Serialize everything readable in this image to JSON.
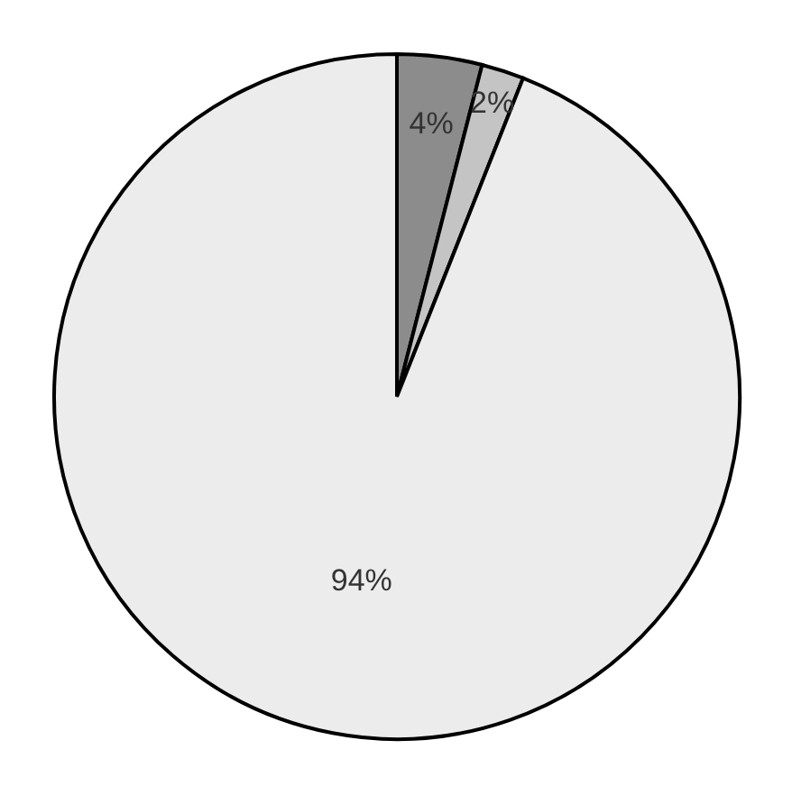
{
  "chart_data": {
    "type": "pie",
    "categories": [
      null,
      null,
      null
    ],
    "values": [
      4,
      2,
      94
    ],
    "colors": [
      "#8c8c8c",
      "#c4c4c4",
      "#ececec"
    ],
    "value_labels": [
      "4%",
      "2%",
      "94%"
    ]
  }
}
